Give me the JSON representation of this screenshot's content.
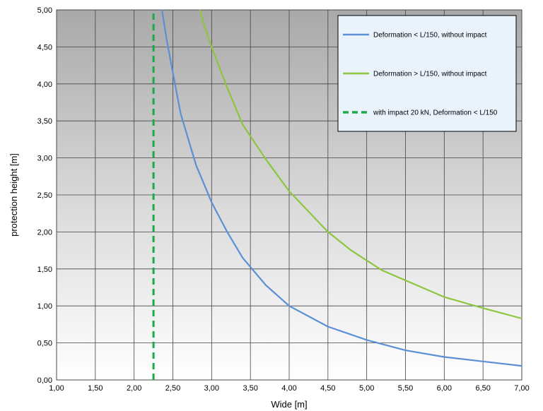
{
  "chart_data": {
    "type": "line",
    "xlabel": "Wide [m]",
    "ylabel": "protection height [m]",
    "xlim": [
      1.0,
      7.0
    ],
    "ylim": [
      0.0,
      5.0
    ],
    "x_ticks": [
      "1,00",
      "1,50",
      "2,00",
      "2,50",
      "3,00",
      "3,50",
      "4,00",
      "4,50",
      "5,00",
      "5,50",
      "6,00",
      "6,50",
      "7,00"
    ],
    "y_ticks": [
      "0,00",
      "0,50",
      "1,00",
      "1,50",
      "2,00",
      "2,50",
      "3,00",
      "3,50",
      "4,00",
      "4,50",
      "5,00"
    ],
    "grid": true,
    "legend_position": "top-right",
    "background": "gradient gray to white",
    "series": [
      {
        "name": "Deformation < L/150, without impact",
        "color": "#5b8fd6",
        "style": "solid",
        "x": [
          2.36,
          2.42,
          2.5,
          2.6,
          2.7,
          2.8,
          2.9,
          3.0,
          3.2,
          3.4,
          3.7,
          4.0,
          4.5,
          5.0,
          5.5,
          6.0,
          6.5,
          7.0
        ],
        "y": [
          5.0,
          4.6,
          4.15,
          3.6,
          3.25,
          2.9,
          2.65,
          2.4,
          2.0,
          1.65,
          1.28,
          1.0,
          0.72,
          0.54,
          0.4,
          0.31,
          0.25,
          0.19
        ]
      },
      {
        "name": "Deformation > L/150, without impact",
        "color": "#8cc63f",
        "style": "solid",
        "x": [
          2.85,
          2.9,
          3.0,
          3.2,
          3.4,
          3.7,
          4.0,
          4.5,
          4.8,
          5.2,
          5.6,
          6.0,
          6.5,
          7.0
        ],
        "y": [
          5.0,
          4.8,
          4.5,
          3.95,
          3.45,
          2.98,
          2.55,
          2.0,
          1.75,
          1.48,
          1.3,
          1.12,
          0.97,
          0.83
        ]
      },
      {
        "name": "with impact 20 kN, Deformation < L/150",
        "color": "#1aaa4a",
        "style": "dashed",
        "x": [
          2.25,
          2.25
        ],
        "y": [
          0.0,
          5.0
        ]
      }
    ]
  }
}
